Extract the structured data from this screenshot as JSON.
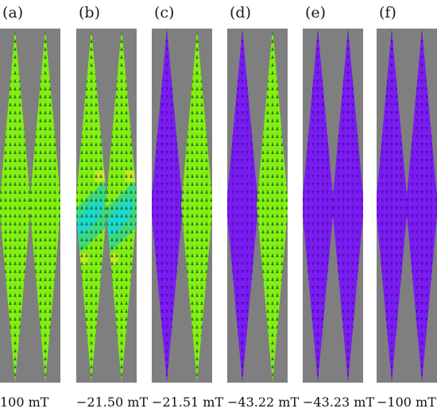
{
  "colors": {
    "background": "#7f7f7f",
    "green": "#84ee12",
    "purple": "#7a1cf2",
    "cyan": "#18d8d8",
    "teal": "#2fd59a",
    "yellow": "#d8e62c",
    "arrow": "#1c6a1c"
  },
  "panels": [
    {
      "letter": "(a)",
      "field": "100 mT",
      "left": "green",
      "right": "green",
      "domain_wall": false
    },
    {
      "letter": "(b)",
      "field": "−21.50 mT",
      "left": "green",
      "right": "green",
      "domain_wall": true
    },
    {
      "letter": "(c)",
      "field": "−21.51 mT",
      "left": "purple",
      "right": "green",
      "domain_wall": false
    },
    {
      "letter": "(d)",
      "field": "−43.22 mT",
      "left": "purple",
      "right": "green",
      "domain_wall": false
    },
    {
      "letter": "(e)",
      "field": "−43.23 mT",
      "left": "purple",
      "right": "purple",
      "domain_wall": false
    },
    {
      "letter": "(f)",
      "field": "−100 mT",
      "left": "purple",
      "right": "purple",
      "domain_wall": false
    }
  ]
}
